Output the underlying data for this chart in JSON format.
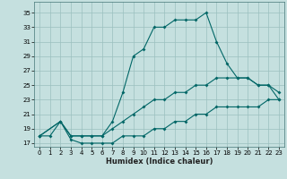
{
  "xlabel": "Humidex (Indice chaleur)",
  "bg_color": "#c5e0df",
  "grid_color": "#9bbfbf",
  "line_color": "#006666",
  "xlim": [
    -0.5,
    23.5
  ],
  "ylim": [
    16.5,
    36.5
  ],
  "yticks": [
    17,
    19,
    21,
    23,
    25,
    27,
    29,
    31,
    33,
    35
  ],
  "xticks": [
    0,
    1,
    2,
    3,
    4,
    5,
    6,
    7,
    8,
    9,
    10,
    11,
    12,
    13,
    14,
    15,
    16,
    17,
    18,
    19,
    20,
    21,
    22,
    23
  ],
  "line1_x": [
    0,
    1,
    2,
    3,
    4,
    5,
    6,
    7,
    8,
    9,
    10,
    11,
    12,
    13,
    14,
    15,
    16,
    17,
    18,
    19,
    20,
    21,
    22,
    23
  ],
  "line1_y": [
    18,
    18,
    20,
    17.5,
    17,
    17,
    17,
    17,
    18,
    18,
    18,
    19,
    19,
    20,
    20,
    21,
    21,
    22,
    22,
    22,
    22,
    22,
    23,
    23
  ],
  "line2_x": [
    0,
    2,
    3,
    4,
    5,
    6,
    7,
    8,
    9,
    10,
    11,
    12,
    13,
    14,
    15,
    16,
    17,
    18,
    19,
    20,
    21,
    22,
    23
  ],
  "line2_y": [
    18,
    20,
    18,
    18,
    18,
    18,
    19,
    20,
    21,
    22,
    23,
    23,
    24,
    24,
    25,
    25,
    26,
    26,
    26,
    26,
    25,
    25,
    24
  ],
  "line3_x": [
    0,
    2,
    3,
    4,
    5,
    6,
    7,
    8,
    9,
    10,
    11,
    12,
    13,
    14,
    15,
    16,
    17,
    18,
    19,
    20,
    21,
    22,
    23
  ],
  "line3_y": [
    18,
    20,
    18,
    18,
    18,
    18,
    20,
    24,
    29,
    30,
    33,
    33,
    34,
    34,
    34,
    35,
    31,
    28,
    26,
    26,
    25,
    25,
    23
  ],
  "marker_size": 2.0,
  "lw": 0.8,
  "tick_fs": 5.0,
  "label_fs": 6.0
}
